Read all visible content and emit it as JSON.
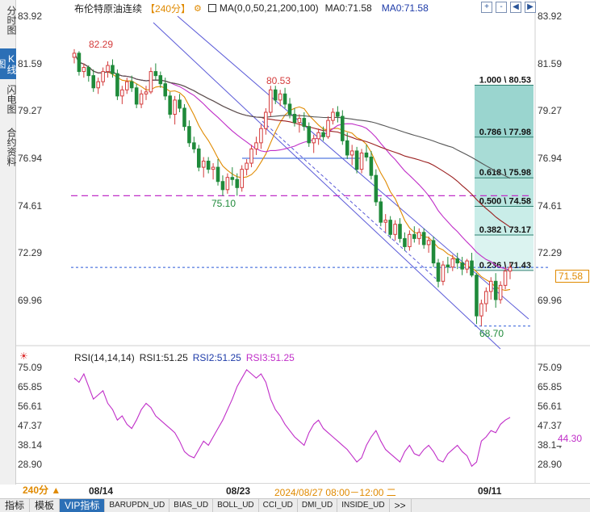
{
  "side_tabs": [
    {
      "label": "分时图"
    },
    {
      "label": "K线图"
    },
    {
      "label": "闪电图"
    },
    {
      "label": "合约资料"
    }
  ],
  "header": {
    "instrument": "布伦特原油连续",
    "period": "【240分】",
    "ma_label": "MA(0,0,50,21,200,100)",
    "ma0_a": "MA0:71.58",
    "ma0_b": "MA0:71.58"
  },
  "window_controls": [
    "+",
    "-",
    "◀",
    "▶"
  ],
  "price_axis": {
    "ticks": [
      "83.92",
      "81.59",
      "79.27",
      "76.94",
      "74.61",
      "72.29",
      "69.96"
    ],
    "current_price": "71.58"
  },
  "annotations": {
    "high1": "82.29",
    "high2": "80.53",
    "low1": "75.10",
    "low2": "68.70"
  },
  "fibonacci": [
    {
      "label": "1.000 \\ 80.53"
    },
    {
      "label": "0.786 \\ 77.98"
    },
    {
      "label": "0.618 \\ 75.98"
    },
    {
      "label": "0.500 \\ 74.58"
    },
    {
      "label": "0.382 \\ 73.17"
    },
    {
      "label": "0.236 \\ 71.43"
    }
  ],
  "rsi": {
    "title": "RSI(14,14,14)",
    "rsi1": "RSI1:51.25",
    "rsi2": "RSI2:51.25",
    "rsi3": "RSI3:51.25",
    "ticks": [
      "75.09",
      "65.85",
      "56.61",
      "47.37",
      "38.14",
      "28.90"
    ],
    "current_tag": "44.30"
  },
  "dates": {
    "d1": "08/14",
    "d2": "08/23",
    "crosshair": "2024/08/27 08:00－12:00 二",
    "d3": "09/11"
  },
  "period_button": "240分 ▲",
  "bottom_tabs": [
    "指标",
    "模板",
    "VIP指标",
    "BARUPDN_UD",
    "BIAS_UD",
    "BOLL_UD",
    "CCI_UD",
    "DMI_UD",
    "INSIDE_UD",
    ">>"
  ],
  "colors": {
    "up": "#d43b3b",
    "down": "#1f8a3a",
    "ma_orange": "#e08a00",
    "ma_magenta": "#c02ec8",
    "ma_darkred": "#9b2020",
    "ma_gray": "#555555",
    "fib_fill": "#9fd7d2",
    "channel": "#5a5ad8"
  },
  "chart_data": {
    "type": "candlestick",
    "candles": [
      [
        81.9,
        82.3,
        81.6,
        82.1
      ],
      [
        82.1,
        82.2,
        81.0,
        81.2
      ],
      [
        81.2,
        81.6,
        80.9,
        81.4
      ],
      [
        81.4,
        81.5,
        80.7,
        81.0
      ],
      [
        81.0,
        81.3,
        80.2,
        80.4
      ],
      [
        80.4,
        80.9,
        80.1,
        80.7
      ],
      [
        80.7,
        81.4,
        80.5,
        81.2
      ],
      [
        81.2,
        81.7,
        80.9,
        81.5
      ],
      [
        81.5,
        81.8,
        80.9,
        81.1
      ],
      [
        81.1,
        81.3,
        79.8,
        80.0
      ],
      [
        80.0,
        80.5,
        79.6,
        80.3
      ],
      [
        80.3,
        80.9,
        80.1,
        80.7
      ],
      [
        80.7,
        81.0,
        80.2,
        80.4
      ],
      [
        80.4,
        80.6,
        79.4,
        79.6
      ],
      [
        79.6,
        80.3,
        79.4,
        80.1
      ],
      [
        80.1,
        80.5,
        79.8,
        80.2
      ],
      [
        80.2,
        81.4,
        80.1,
        81.2
      ],
      [
        81.2,
        81.6,
        80.8,
        81.0
      ],
      [
        81.0,
        81.2,
        80.4,
        80.6
      ],
      [
        80.6,
        80.9,
        79.8,
        80.0
      ],
      [
        80.0,
        80.2,
        78.9,
        79.1
      ],
      [
        79.1,
        80.0,
        78.6,
        79.8
      ],
      [
        79.8,
        80.1,
        79.2,
        79.4
      ],
      [
        79.4,
        79.6,
        78.3,
        78.5
      ],
      [
        78.5,
        78.8,
        77.5,
        77.7
      ],
      [
        77.7,
        78.0,
        77.2,
        77.4
      ],
      [
        77.4,
        77.6,
        76.3,
        76.5
      ],
      [
        76.5,
        77.0,
        76.0,
        76.8
      ],
      [
        76.8,
        77.0,
        76.2,
        76.4
      ],
      [
        76.4,
        76.7,
        75.9,
        76.5
      ],
      [
        76.5,
        76.9,
        75.6,
        75.8
      ],
      [
        75.8,
        76.1,
        75.1,
        75.4
      ],
      [
        75.4,
        76.2,
        75.2,
        76.0
      ],
      [
        76.0,
        76.5,
        75.6,
        75.9
      ],
      [
        75.9,
        76.2,
        75.1,
        75.5
      ],
      [
        75.5,
        76.6,
        75.3,
        76.4
      ],
      [
        76.4,
        76.9,
        76.1,
        76.7
      ],
      [
        76.7,
        77.6,
        76.5,
        77.4
      ],
      [
        77.4,
        78.0,
        77.1,
        77.7
      ],
      [
        77.7,
        78.6,
        77.4,
        78.4
      ],
      [
        78.4,
        79.4,
        78.1,
        79.2
      ],
      [
        79.2,
        80.5,
        79.0,
        80.3
      ],
      [
        80.3,
        80.5,
        79.6,
        79.8
      ],
      [
        79.8,
        80.3,
        79.5,
        80.1
      ],
      [
        80.1,
        80.4,
        79.4,
        79.6
      ],
      [
        79.6,
        79.9,
        78.9,
        79.1
      ],
      [
        79.1,
        79.4,
        78.5,
        78.7
      ],
      [
        78.7,
        79.1,
        78.2,
        78.9
      ],
      [
        78.9,
        79.2,
        78.3,
        78.5
      ],
      [
        78.5,
        78.7,
        77.5,
        77.7
      ],
      [
        77.7,
        78.1,
        77.2,
        77.9
      ],
      [
        77.9,
        78.4,
        77.6,
        78.2
      ],
      [
        78.2,
        78.5,
        77.8,
        78.0
      ],
      [
        78.0,
        79.0,
        77.9,
        78.8
      ],
      [
        78.8,
        79.4,
        78.6,
        79.2
      ],
      [
        79.2,
        79.5,
        78.7,
        79.0
      ],
      [
        79.0,
        79.3,
        77.6,
        77.8
      ],
      [
        77.8,
        78.2,
        76.9,
        77.1
      ],
      [
        77.1,
        77.6,
        76.6,
        77.3
      ],
      [
        77.3,
        77.5,
        76.2,
        76.4
      ],
      [
        76.4,
        77.4,
        76.2,
        77.2
      ],
      [
        77.2,
        77.6,
        76.8,
        77.0
      ],
      [
        77.0,
        77.3,
        75.9,
        76.1
      ],
      [
        76.1,
        76.4,
        74.6,
        74.8
      ],
      [
        74.8,
        75.0,
        73.6,
        73.8
      ],
      [
        73.8,
        74.2,
        73.3,
        73.9
      ],
      [
        73.9,
        74.1,
        73.0,
        73.2
      ],
      [
        73.2,
        73.9,
        72.9,
        73.7
      ],
      [
        73.7,
        74.0,
        72.8,
        73.0
      ],
      [
        73.0,
        73.3,
        72.4,
        72.6
      ],
      [
        72.6,
        73.4,
        72.4,
        73.2
      ],
      [
        73.2,
        73.6,
        72.8,
        73.0
      ],
      [
        73.0,
        73.5,
        72.7,
        73.3
      ],
      [
        73.3,
        73.5,
        72.5,
        72.7
      ],
      [
        72.7,
        73.1,
        72.3,
        72.9
      ],
      [
        72.9,
        73.1,
        71.6,
        71.8
      ],
      [
        71.8,
        72.0,
        70.6,
        70.9
      ],
      [
        70.9,
        71.9,
        70.7,
        71.7
      ],
      [
        71.7,
        72.1,
        71.3,
        71.6
      ],
      [
        71.6,
        72.2,
        71.4,
        72.0
      ],
      [
        72.0,
        72.3,
        71.5,
        71.8
      ],
      [
        71.8,
        72.1,
        71.2,
        71.5
      ],
      [
        71.5,
        72.0,
        71.3,
        71.9
      ],
      [
        71.9,
        72.3,
        71.1,
        71.2
      ],
      [
        71.2,
        71.3,
        68.8,
        69.2
      ],
      [
        69.2,
        70.0,
        68.7,
        69.8
      ],
      [
        69.8,
        70.6,
        69.4,
        70.4
      ],
      [
        70.4,
        71.1,
        70.0,
        70.9
      ],
      [
        70.9,
        71.3,
        69.6,
        70.0
      ],
      [
        70.0,
        70.9,
        69.8,
        70.7
      ],
      [
        70.7,
        71.6,
        70.5,
        71.4
      ],
      [
        71.4,
        71.8,
        71.0,
        71.58
      ]
    ],
    "rsi_values": [
      70,
      68,
      72,
      66,
      60,
      62,
      64,
      58,
      55,
      50,
      52,
      48,
      46,
      50,
      55,
      58,
      56,
      52,
      50,
      48,
      46,
      44,
      40,
      35,
      33,
      32,
      36,
      40,
      38,
      42,
      46,
      50,
      55,
      60,
      66,
      70,
      74,
      72,
      70,
      72,
      68,
      60,
      55,
      52,
      48,
      45,
      42,
      40,
      38,
      44,
      48,
      50,
      46,
      44,
      42,
      40,
      38,
      36,
      33,
      30,
      32,
      38,
      42,
      45,
      40,
      36,
      34,
      32,
      30,
      35,
      38,
      34,
      33,
      36,
      38,
      35,
      31,
      30,
      34,
      36,
      38,
      35,
      33,
      28,
      30,
      40,
      42,
      45,
      44,
      48,
      50,
      51.25
    ]
  }
}
